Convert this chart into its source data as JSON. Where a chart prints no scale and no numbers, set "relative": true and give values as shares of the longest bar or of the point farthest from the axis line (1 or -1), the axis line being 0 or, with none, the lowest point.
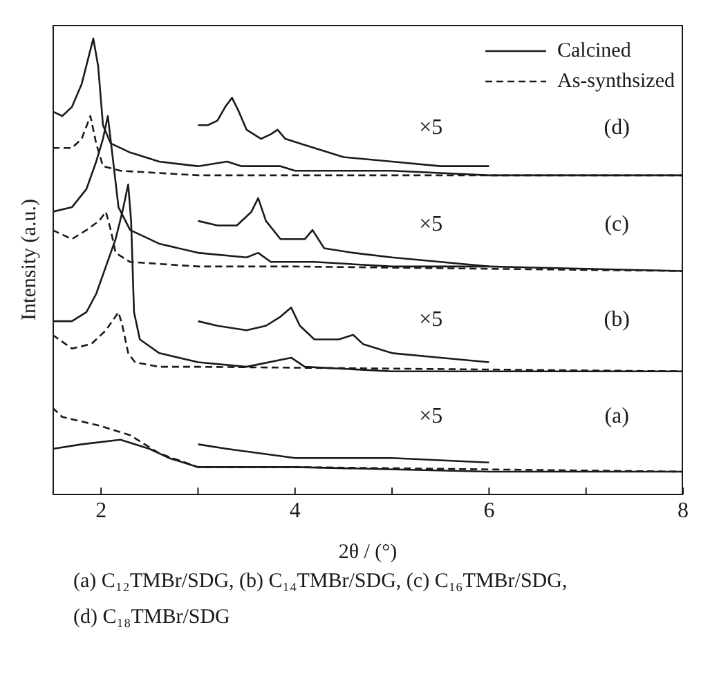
{
  "chart_data": {
    "type": "line",
    "relative": true,
    "xlabel": "2θ / (°)",
    "ylabel": "Intensity (a.u.)",
    "xlim": [
      1.5,
      8
    ],
    "xticks": [
      2,
      {
        "value": 3,
        "label": null
      },
      4,
      {
        "value": 5,
        "label": null
      },
      6,
      {
        "value": 7,
        "label": null
      },
      8
    ],
    "legend": "top right",
    "series": [
      {
        "name": "Calcined",
        "color": "#1a1a1a",
        "line_style": "solid",
        "x": [
          1.5,
          1.6,
          1.7,
          1.8,
          1.86,
          1.92,
          1.97,
          2.02,
          2.1,
          2.3,
          2.6,
          3.0,
          3.3,
          3.45,
          3.85,
          4.0,
          5.0,
          6.0,
          8.0
        ],
        "values": [
          0.84,
          0.83,
          0.85,
          0.9,
          0.95,
          1.0,
          0.94,
          0.81,
          0.77,
          0.75,
          0.73,
          0.72,
          0.73,
          0.72,
          0.72,
          0.71,
          0.71,
          0.7,
          0.7
        ]
      },
      {
        "name": "As-synthsized",
        "color": "#1a1a1a",
        "line_style": "dashed",
        "x": [
          1.5,
          1.7,
          1.8,
          1.89,
          1.95,
          2.02,
          2.2,
          3.0,
          6.0,
          8.0
        ],
        "values": [
          0.76,
          0.76,
          0.78,
          0.83,
          0.77,
          0.72,
          0.71,
          0.7,
          0.7,
          0.7
        ]
      },
      {
        "color": "#1a1a1a",
        "line_style": "solid",
        "x": [
          3.0,
          3.1,
          3.2,
          3.28,
          3.35,
          3.42,
          3.5,
          3.65,
          3.75,
          3.82,
          3.9,
          4.05,
          4.5,
          5.0,
          5.5,
          6.0
        ],
        "values": [
          0.81,
          0.81,
          0.82,
          0.85,
          0.87,
          0.84,
          0.8,
          0.78,
          0.79,
          0.8,
          0.78,
          0.77,
          0.74,
          0.73,
          0.72,
          0.72
        ]
      },
      {
        "color": "#1a1a1a",
        "line_style": "solid",
        "x": [
          1.5,
          1.7,
          1.85,
          1.95,
          2.02,
          2.07,
          2.12,
          2.18,
          2.3,
          2.6,
          3.0,
          3.5,
          3.62,
          3.75,
          4.2,
          5.0,
          6.0,
          8.0
        ],
        "values": [
          0.62,
          0.63,
          0.67,
          0.73,
          0.78,
          0.83,
          0.74,
          0.63,
          0.58,
          0.55,
          0.53,
          0.52,
          0.53,
          0.51,
          0.51,
          0.5,
          0.5,
          0.49
        ]
      },
      {
        "color": "#1a1a1a",
        "line_style": "dashed",
        "x": [
          1.5,
          1.7,
          1.85,
          1.98,
          2.05,
          2.1,
          2.15,
          2.3,
          3.0,
          4.0,
          8.0
        ],
        "values": [
          0.58,
          0.56,
          0.58,
          0.6,
          0.62,
          0.58,
          0.53,
          0.51,
          0.5,
          0.5,
          0.49
        ]
      },
      {
        "color": "#1a1a1a",
        "line_style": "solid",
        "x": [
          3.0,
          3.2,
          3.4,
          3.55,
          3.62,
          3.7,
          3.85,
          4.1,
          4.18,
          4.3,
          4.6,
          5.0,
          5.5,
          6.0
        ],
        "values": [
          0.6,
          0.59,
          0.59,
          0.62,
          0.65,
          0.6,
          0.56,
          0.56,
          0.58,
          0.54,
          0.53,
          0.52,
          0.51,
          0.5
        ]
      },
      {
        "color": "#1a1a1a",
        "line_style": "solid",
        "x": [
          1.5,
          1.7,
          1.85,
          1.95,
          2.05,
          2.15,
          2.22,
          2.28,
          2.31,
          2.34,
          2.4,
          2.6,
          3.0,
          3.5,
          3.96,
          4.1,
          5.0,
          8.0
        ],
        "values": [
          0.38,
          0.38,
          0.4,
          0.44,
          0.5,
          0.56,
          0.62,
          0.68,
          0.6,
          0.4,
          0.34,
          0.31,
          0.29,
          0.28,
          0.3,
          0.28,
          0.27,
          0.27
        ]
      },
      {
        "color": "#1a1a1a",
        "line_style": "dashed",
        "x": [
          1.5,
          1.7,
          1.9,
          2.05,
          2.18,
          2.22,
          2.28,
          2.35,
          2.6,
          3.0,
          8.0
        ],
        "values": [
          0.35,
          0.32,
          0.33,
          0.36,
          0.4,
          0.37,
          0.31,
          0.29,
          0.28,
          0.28,
          0.27
        ]
      },
      {
        "color": "#1a1a1a",
        "line_style": "solid",
        "x": [
          3.0,
          3.2,
          3.5,
          3.7,
          3.85,
          3.96,
          4.05,
          4.2,
          4.45,
          4.6,
          4.7,
          5.0,
          5.5,
          6.0
        ],
        "values": [
          0.38,
          0.37,
          0.36,
          0.37,
          0.39,
          0.41,
          0.37,
          0.34,
          0.34,
          0.35,
          0.33,
          0.31,
          0.3,
          0.29
        ]
      },
      {
        "color": "#1a1a1a",
        "line_style": "solid",
        "x": [
          1.5,
          1.8,
          2.2,
          2.5,
          2.7,
          3.0,
          4.0,
          6.0,
          8.0
        ],
        "values": [
          0.1,
          0.11,
          0.12,
          0.1,
          0.08,
          0.06,
          0.06,
          0.05,
          0.05
        ]
      },
      {
        "color": "#1a1a1a",
        "line_style": "dashed",
        "x": [
          1.5,
          1.6,
          2.0,
          2.3,
          2.6,
          3.0,
          4.0,
          8.0
        ],
        "values": [
          0.19,
          0.17,
          0.15,
          0.13,
          0.09,
          0.06,
          0.06,
          0.05
        ]
      },
      {
        "color": "#1a1a1a",
        "line_style": "solid",
        "x": [
          3.0,
          3.3,
          4.0,
          5.0,
          6.0
        ],
        "values": [
          0.11,
          0.1,
          0.08,
          0.08,
          0.07
        ]
      }
    ],
    "annotations": [
      "×5",
      "(d)",
      "×5",
      "(c)",
      "×5",
      "(b)",
      "×5",
      "(a)",
      "(a) C₁₂TMBr/SDG, (b) C₁₄TMBr/SDG, (c) C₁₆TMBr/SDG, (d) C₁₈TMBr/SDG"
    ]
  }
}
